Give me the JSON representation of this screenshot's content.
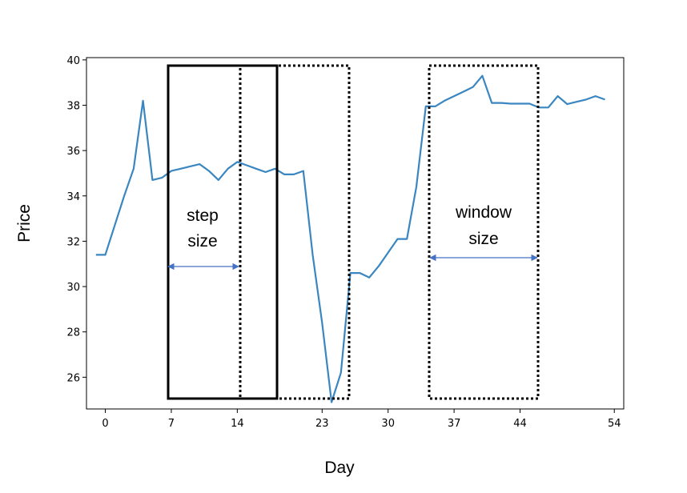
{
  "chart_data": {
    "type": "line",
    "xlabel": "Day",
    "ylabel": "Price",
    "xlim": [
      -2,
      55
    ],
    "ylim": [
      24.6,
      40.1
    ],
    "xticks": [
      0,
      7,
      14,
      23,
      30,
      37,
      44,
      54
    ],
    "xtick_labels": [
      "0",
      "7",
      "14",
      "23",
      "30",
      "37",
      "44",
      "54"
    ],
    "yticks": [
      26,
      28,
      30,
      32,
      34,
      36,
      38,
      40
    ],
    "ytick_labels": [
      "26",
      "28",
      "30",
      "32",
      "34",
      "36",
      "38",
      "40"
    ],
    "grid": false,
    "series_color": "#3a86c0",
    "series": [
      {
        "x": [
          -1,
          0,
          1,
          2,
          3,
          4,
          5,
          6,
          7,
          8,
          9,
          10,
          11,
          12,
          13,
          14,
          15,
          16,
          17,
          18,
          19,
          20,
          21,
          22,
          23,
          24,
          25,
          26,
          27,
          28,
          29,
          30,
          31,
          32,
          33,
          34,
          35,
          36,
          37,
          38,
          39,
          40,
          41,
          42,
          43,
          44,
          45,
          46,
          47,
          48,
          49,
          50,
          51,
          52,
          53
        ],
        "y": [
          31.4,
          31.4,
          32.7,
          34.0,
          35.2,
          38.2,
          34.7,
          34.8,
          35.1,
          35.2,
          35.3,
          35.4,
          35.1,
          34.7,
          35.2,
          35.5,
          35.35,
          35.2,
          35.05,
          35.2,
          34.95,
          34.95,
          35.1,
          31.4,
          28.4,
          24.9,
          26.2,
          30.6,
          30.6,
          30.4,
          30.9,
          31.5,
          32.1,
          32.1,
          34.4,
          37.95,
          37.95,
          38.2,
          38.4,
          38.6,
          38.8,
          39.3,
          38.1,
          38.1,
          38.07,
          38.07,
          38.07,
          37.9,
          37.9,
          38.4,
          38.05,
          38.15,
          38.25,
          38.4,
          38.25
        ]
      }
    ],
    "annotations": {
      "step": [
        "step",
        "size"
      ],
      "window": [
        "window",
        "size"
      ]
    }
  },
  "colors": {
    "arrow": "#4472c4",
    "rect": "#000000"
  }
}
